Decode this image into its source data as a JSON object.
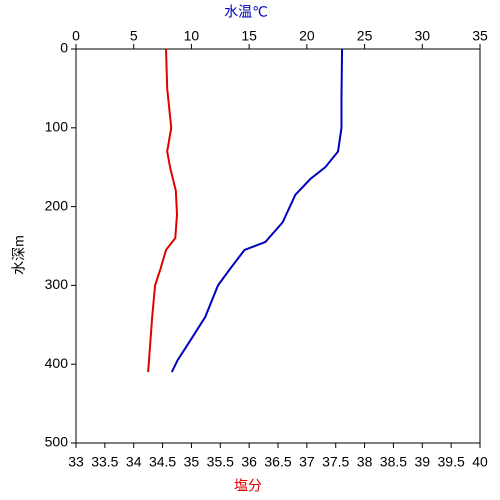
{
  "chart_data": {
    "type": "line",
    "x2label": "水温℃",
    "xlabel": "塩分",
    "ylabel": "水深m",
    "x2lim": [
      0,
      35
    ],
    "x2ticks": [
      0,
      5,
      10,
      15,
      20,
      25,
      30,
      35
    ],
    "xlim": [
      33,
      40
    ],
    "xticks": [
      33,
      33.5,
      34,
      34.5,
      35,
      35.5,
      36,
      36.5,
      37,
      37.5,
      38,
      38.5,
      39,
      39.5,
      40
    ],
    "ylim": [
      0,
      500
    ],
    "yticks": [
      0,
      100,
      200,
      300,
      400,
      500
    ],
    "y_inverted": true,
    "grid": false,
    "x2label_color": "#0000c0",
    "xlabel_color": "#e00000",
    "series": [
      {
        "axis": "x2",
        "color": "#0000c0",
        "depths": [
          0,
          60,
          100,
          130,
          150,
          165,
          185,
          220,
          245,
          255,
          280,
          300,
          340,
          370,
          395,
          410
        ],
        "values": [
          23.05,
          23.0,
          23.0,
          22.7,
          21.6,
          20.3,
          19.0,
          17.9,
          16.4,
          14.6,
          13.3,
          12.3,
          11.2,
          9.9,
          8.8,
          8.3
        ]
      },
      {
        "axis": "x",
        "color": "#e00000",
        "depths": [
          0,
          50,
          100,
          130,
          150,
          180,
          210,
          240,
          255,
          280,
          300,
          340,
          380,
          410
        ],
        "values": [
          34.56,
          34.58,
          34.65,
          34.58,
          34.63,
          34.73,
          34.75,
          34.72,
          34.56,
          34.46,
          34.37,
          34.32,
          34.28,
          34.25
        ]
      }
    ]
  }
}
